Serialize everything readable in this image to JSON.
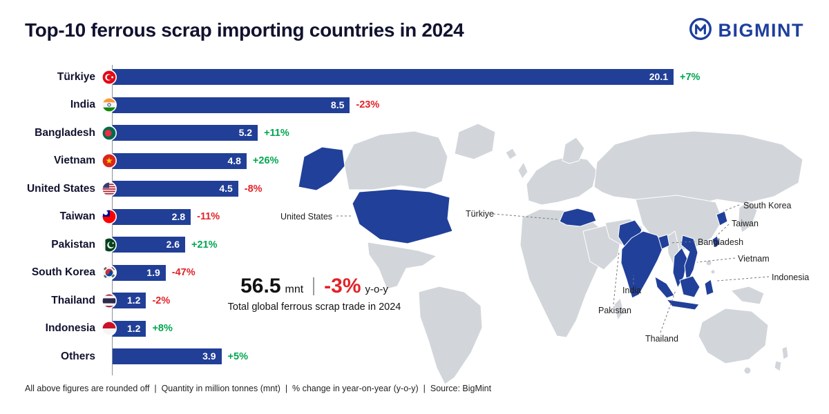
{
  "header": {
    "title": "Top-10 ferrous scrap importing countries in 2024",
    "brand": "BIGMINT"
  },
  "chart_data": {
    "type": "bar",
    "orientation": "horizontal",
    "unit": "mnt",
    "max_value": 20.1,
    "title": "Top-10 ferrous scrap importing countries in 2024",
    "rows": [
      {
        "country": "Türkiye",
        "value": 20.1,
        "value_label": "20.1",
        "change": "+7%",
        "trend": "up"
      },
      {
        "country": "India",
        "value": 8.5,
        "value_label": "8.5",
        "change": "-23%",
        "trend": "down"
      },
      {
        "country": "Bangladesh",
        "value": 5.2,
        "value_label": "5.2",
        "change": "+11%",
        "trend": "up"
      },
      {
        "country": "Vietnam",
        "value": 4.8,
        "value_label": "4.8",
        "change": "+26%",
        "trend": "up"
      },
      {
        "country": "United States",
        "value": 4.5,
        "value_label": "4.5",
        "change": "-8%",
        "trend": "down"
      },
      {
        "country": "Taiwan",
        "value": 2.8,
        "value_label": "2.8",
        "change": "-11%",
        "trend": "down"
      },
      {
        "country": "Pakistan",
        "value": 2.6,
        "value_label": "2.6",
        "change": "+21%",
        "trend": "up"
      },
      {
        "country": "South Korea",
        "value": 1.9,
        "value_label": "1.9",
        "change": "-47%",
        "trend": "down"
      },
      {
        "country": "Thailand",
        "value": 1.2,
        "value_label": "1.2",
        "change": "-2%",
        "trend": "down"
      },
      {
        "country": "Indonesia",
        "value": 1.2,
        "value_label": "1.2",
        "change": "+8%",
        "trend": "up"
      },
      {
        "country": "Others",
        "value": 3.9,
        "value_label": "3.9",
        "change": "+5%",
        "trend": "up"
      }
    ]
  },
  "summary": {
    "total_value": "56.5",
    "total_unit": "mnt",
    "change": "-3%",
    "change_suffix": "y-o-y",
    "caption": "Total global ferrous scrap trade in 2024"
  },
  "map": {
    "labels": [
      "United States",
      "Türkiye",
      "South Korea",
      "Taiwan",
      "Bangladesh",
      "Vietnam",
      "Indonesia",
      "India",
      "Pakistan",
      "Thailand"
    ]
  },
  "footer": {
    "note": "All above figures are rounded off  |  Quantity in million tonnes (mnt)  |  % change in year-on-year (y-o-y)  |  Source: BigMint"
  },
  "colors": {
    "bar": "#213f97",
    "positive": "#00a651",
    "negative": "#e32227",
    "map_land": "#d2d6da",
    "map_highlight": "#21409a",
    "brand_blue": "#1d3f9d"
  }
}
